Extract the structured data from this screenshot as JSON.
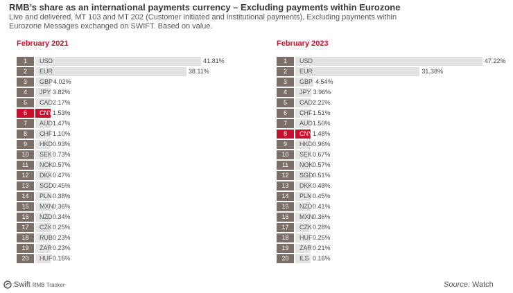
{
  "header": {
    "title": "RMB’s share as an international payments currency – Excluding payments within Eurozone",
    "subtitle": "Live and delivered, MT 103 and MT 202 (Customer initiated and institutional payments), Excluding payments within Eurozone Messages exchanged on SWIFT. Based on value."
  },
  "chart_data": [
    {
      "type": "bar",
      "title": "February 2021",
      "highlight": "CNY",
      "xlim": [
        0,
        47.22
      ],
      "categories": [
        "USD",
        "EUR",
        "GBP",
        "JPY",
        "CAD",
        "CNY",
        "AUD",
        "CHF",
        "HKD",
        "SEK",
        "NOK",
        "DKK",
        "SGD",
        "PLN",
        "MXN",
        "NZD",
        "CZK",
        "RUB",
        "ZAR",
        "HUF"
      ],
      "ranks": [
        "1",
        "2",
        "3",
        "4",
        "5",
        "6",
        "7",
        "8",
        "9",
        "10",
        "11",
        "12",
        "13",
        "14",
        "15",
        "16",
        "17",
        "18",
        "19",
        "20"
      ],
      "values": [
        41.81,
        38.11,
        4.02,
        3.82,
        2.17,
        1.53,
        1.47,
        1.1,
        0.93,
        0.73,
        0.57,
        0.47,
        0.45,
        0.38,
        0.36,
        0.34,
        0.25,
        0.23,
        0.23,
        0.16
      ],
      "labels": [
        "41.81%",
        "38.11%",
        "4.02%",
        "3.82%",
        "2.17%",
        "1.53%",
        "1.47%",
        "1.10%",
        "0.93%",
        "0.73%",
        "0.57%",
        "0.47%",
        "0.45%",
        "0.38%",
        "0.36%",
        "0.34%",
        "0.25%",
        "0.23%",
        "0.23%",
        "0.16%"
      ]
    },
    {
      "type": "bar",
      "title": "February 2023",
      "highlight": "CNY",
      "xlim": [
        0,
        47.22
      ],
      "categories": [
        "USD",
        "EUR",
        "GBP",
        "JPY",
        "CAD",
        "CHF",
        "AUD",
        "CNY",
        "HKD",
        "SEK",
        "NOK",
        "SGD",
        "DKK",
        "PLN",
        "NZD",
        "MXN",
        "CZK",
        "HUF",
        "ZAR",
        "ILS"
      ],
      "ranks": [
        "1",
        "2",
        "3",
        "4",
        "5",
        "6",
        "7",
        "8",
        "9",
        "10",
        "11",
        "12",
        "13",
        "14",
        "15",
        "16",
        "17",
        "18",
        "19",
        "20"
      ],
      "values": [
        47.22,
        31.38,
        4.54,
        3.96,
        2.22,
        1.51,
        1.5,
        1.48,
        0.96,
        0.67,
        0.57,
        0.51,
        0.48,
        0.45,
        0.41,
        0.36,
        0.28,
        0.25,
        0.21,
        0.16
      ],
      "labels": [
        "47.22%",
        "31.38%",
        "4.54%",
        "3.96%",
        "2.22%",
        "1.51%",
        "1.50%",
        "1.48%",
        "0.96%",
        "0.67%",
        "0.57%",
        "0.51%",
        "0.48%",
        "0.45%",
        "0.41%",
        "0.36%",
        "0.28%",
        "0.25%",
        "0.21%",
        "0.16%"
      ]
    }
  ],
  "footer": {
    "brand": "Swift",
    "brand_sub": "RMB Tracker",
    "source_label": "Source:",
    "source_value": "Watch"
  },
  "colors": {
    "highlight": "#c8102e",
    "bar": "#e5e3e2",
    "rank": "#7b6f67",
    "title": "#c8102e"
  }
}
